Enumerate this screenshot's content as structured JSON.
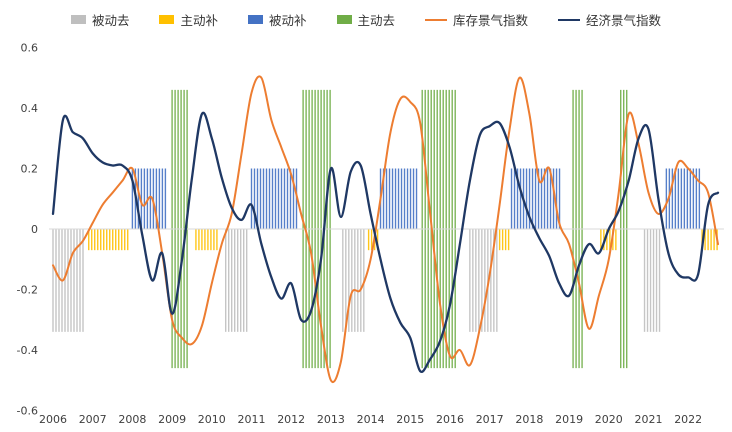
{
  "page": {
    "background": "#FFFFFF"
  },
  "legend": {
    "items": [
      {
        "label": "被动去",
        "type": "bar",
        "color": "#BFBFBF"
      },
      {
        "label": "主动补",
        "type": "bar",
        "color": "#FFC000"
      },
      {
        "label": "被动补",
        "type": "bar",
        "color": "#4472C4"
      },
      {
        "label": "主动去",
        "type": "bar",
        "color": "#70AD47"
      },
      {
        "label": "库存景气指数",
        "type": "line",
        "color": "#ED7D31"
      },
      {
        "label": "经济景气指数",
        "type": "line",
        "color": "#1F3864"
      }
    ]
  },
  "chart_data": {
    "type": "line",
    "title": "",
    "xlabel": "",
    "ylabel": "",
    "grid": false,
    "legend_position": "top",
    "x_ticks": [
      2006,
      2007,
      2008,
      2009,
      2010,
      2011,
      2012,
      2013,
      2014,
      2015,
      2016,
      2017,
      2018,
      2019,
      2020,
      2021,
      2022
    ],
    "y_ticks": [
      0.6,
      0.4,
      0.2,
      0,
      -0.2,
      -0.4,
      -0.6
    ],
    "ylim": [
      -0.6,
      0.6
    ],
    "xlim": [
      2005.9,
      2022.9
    ],
    "zero_line_color": "#D9D9D9",
    "axis_text_color": "#404040",
    "phases": {
      "被动去": {
        "color": "#BFBFBF",
        "y0": 0,
        "y1": -0.34
      },
      "主动补": {
        "color": "#FFC000",
        "y0": 0,
        "y1": -0.07
      },
      "被动补": {
        "color": "#4472C4",
        "y0": 0,
        "y1": 0.2
      },
      "主动去": {
        "color": "#70AD47",
        "y0": -0.46,
        "y1": 0.46
      }
    },
    "phase_bands": [
      {
        "phase": "被动去",
        "start": 2006.0,
        "end": 2006.8
      },
      {
        "phase": "主动补",
        "start": 2006.9,
        "end": 2007.95
      },
      {
        "phase": "被动补",
        "start": 2008.0,
        "end": 2008.9
      },
      {
        "phase": "主动去",
        "start": 2009.0,
        "end": 2009.4
      },
      {
        "phase": "主动补",
        "start": 2009.6,
        "end": 2010.2
      },
      {
        "phase": "被动去",
        "start": 2010.35,
        "end": 2010.95
      },
      {
        "phase": "被动补",
        "start": 2011.0,
        "end": 2012.2
      },
      {
        "phase": "主动去",
        "start": 2012.3,
        "end": 2013.05
      },
      {
        "phase": "被动去",
        "start": 2013.3,
        "end": 2013.9
      },
      {
        "phase": "主动补",
        "start": 2013.95,
        "end": 2014.2
      },
      {
        "phase": "被动补",
        "start": 2014.25,
        "end": 2015.2
      },
      {
        "phase": "主动去",
        "start": 2015.3,
        "end": 2016.15
      },
      {
        "phase": "被动去",
        "start": 2016.5,
        "end": 2017.2
      },
      {
        "phase": "主动补",
        "start": 2017.25,
        "end": 2017.5
      },
      {
        "phase": "被动补",
        "start": 2017.55,
        "end": 2018.8
      },
      {
        "phase": "主动去",
        "start": 2019.1,
        "end": 2019.4
      },
      {
        "phase": "主动补",
        "start": 2019.8,
        "end": 2020.25
      },
      {
        "phase": "主动去",
        "start": 2020.3,
        "end": 2020.5
      },
      {
        "phase": "被动去",
        "start": 2020.9,
        "end": 2021.3
      },
      {
        "phase": "被动补",
        "start": 2021.45,
        "end": 2022.3
      },
      {
        "phase": "主动补",
        "start": 2022.35,
        "end": 2022.8
      }
    ],
    "series": [
      {
        "name": "库存景气指数",
        "color": "#ED7D31",
        "x0": 2006.0,
        "dx": 0.25,
        "values": [
          -0.12,
          -0.17,
          -0.08,
          -0.04,
          0.02,
          0.08,
          0.12,
          0.16,
          0.2,
          0.08,
          0.1,
          -0.08,
          -0.3,
          -0.36,
          -0.38,
          -0.32,
          -0.18,
          -0.05,
          0.05,
          0.25,
          0.45,
          0.5,
          0.36,
          0.27,
          0.18,
          0.05,
          -0.08,
          -0.32,
          -0.5,
          -0.44,
          -0.22,
          -0.2,
          -0.1,
          0.1,
          0.32,
          0.43,
          0.42,
          0.35,
          0.05,
          -0.25,
          -0.42,
          -0.4,
          -0.45,
          -0.33,
          -0.15,
          0.08,
          0.33,
          0.5,
          0.38,
          0.16,
          0.2,
          0.02,
          -0.05,
          -0.18,
          -0.33,
          -0.22,
          -0.1,
          0.12,
          0.38,
          0.28,
          0.12,
          0.05,
          0.1,
          0.22,
          0.2,
          0.16,
          0.12,
          -0.05
        ]
      },
      {
        "name": "经济景气指数",
        "color": "#1F3864",
        "x0": 2006.0,
        "dx": 0.25,
        "values": [
          0.05,
          0.36,
          0.32,
          0.3,
          0.25,
          0.22,
          0.21,
          0.21,
          0.16,
          -0.02,
          -0.17,
          -0.08,
          -0.28,
          -0.1,
          0.17,
          0.38,
          0.3,
          0.17,
          0.07,
          0.03,
          0.08,
          -0.05,
          -0.16,
          -0.23,
          -0.18,
          -0.3,
          -0.27,
          -0.1,
          0.2,
          0.04,
          0.19,
          0.21,
          0.05,
          -0.1,
          -0.23,
          -0.31,
          -0.36,
          -0.47,
          -0.43,
          -0.37,
          -0.25,
          -0.05,
          0.16,
          0.31,
          0.34,
          0.35,
          0.27,
          0.14,
          0.04,
          -0.03,
          -0.09,
          -0.18,
          -0.22,
          -0.12,
          -0.05,
          -0.08,
          0.0,
          0.06,
          0.16,
          0.3,
          0.33,
          0.1,
          -0.08,
          -0.15,
          -0.16,
          -0.15,
          0.08,
          0.12
        ]
      }
    ]
  }
}
